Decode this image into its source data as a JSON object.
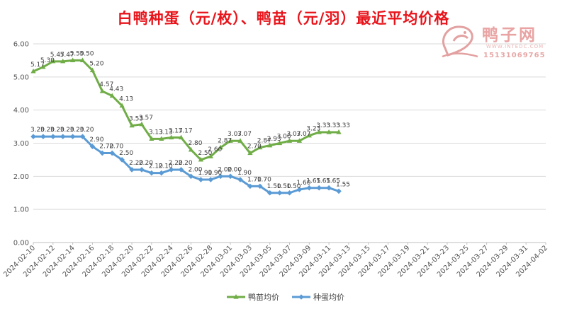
{
  "chart_data": {
    "type": "line",
    "title": "白鸭种蛋（元/枚）、鸭苗（元/羽）最近平均价格",
    "ylim": [
      0,
      6
    ],
    "yticks": [
      "0.00",
      "1.00",
      "2.00",
      "3.00",
      "4.00",
      "5.00",
      "6.00"
    ],
    "xtick_labels": [
      "2024-02-10",
      "2024-02-12",
      "2024-02-14",
      "2024-02-16",
      "2024-02-18",
      "2024-02-20",
      "2024-02-22",
      "2024-02-24",
      "2024-02-26",
      "2024-02-28",
      "2024-03-01",
      "2024-03-03",
      "2024-03-05",
      "2024-03-07",
      "2024-03-09",
      "2024-03-11",
      "2024-03-13",
      "2024-03-15",
      "2024-03-17",
      "2024-03-19",
      "2024-03-21",
      "2024-03-23",
      "2024-03-25",
      "2024-03-27",
      "2024-03-29",
      "2024-03-31",
      "2024-04-02"
    ],
    "legend_position": "bottom",
    "grid": "horizontal",
    "series": [
      {
        "name": "鸭苗均价",
        "color": "#70ad47",
        "marker": "triangle",
        "values": [
          5.17,
          5.3,
          5.47,
          5.47,
          5.5,
          5.5,
          5.2,
          4.57,
          4.43,
          4.13,
          3.53,
          3.57,
          3.13,
          3.13,
          3.17,
          3.17,
          2.8,
          2.5,
          2.6,
          2.87,
          3.07,
          3.07,
          2.7,
          2.87,
          2.93,
          3.0,
          3.07,
          3.07,
          3.23,
          3.33,
          3.33,
          3.33
        ],
        "labels": [
          "5.17",
          "5.30",
          "5.47",
          "5.47",
          "5.50",
          "5.50",
          "5.20",
          "4.57",
          "4.43",
          "4.13",
          "3.53",
          "3.57",
          "3.13",
          "3.13",
          "3.17",
          "3.17",
          "2.80",
          "2.50",
          "2.60",
          "2.87",
          "3.07",
          "3.07",
          "2.70",
          "2.87",
          "2.93",
          "3.00",
          "3.07",
          "3.07",
          "3.23",
          "3.33",
          "3.33",
          "3.33"
        ]
      },
      {
        "name": "种蛋均价",
        "color": "#5b9bd5",
        "marker": "diamond",
        "values": [
          3.2,
          3.2,
          3.2,
          3.2,
          3.2,
          3.2,
          2.9,
          2.7,
          2.7,
          2.5,
          2.2,
          2.2,
          2.1,
          2.1,
          2.2,
          2.2,
          2.0,
          1.9,
          1.9,
          2.0,
          2.0,
          1.9,
          1.7,
          1.7,
          1.5,
          1.5,
          1.5,
          1.6,
          1.65,
          1.65,
          1.65,
          1.55
        ],
        "labels": [
          "3.20",
          "3.20",
          "3.20",
          "3.20",
          "3.20",
          "3.20",
          "2.90",
          "2.70",
          "2.70",
          "2.50",
          "2.20",
          "2.20",
          "2.10",
          "2.10",
          "2.20",
          "2.20",
          "2.00",
          "1.90",
          "1.90",
          "2.00",
          "2.00",
          "1.90",
          "1.70",
          "1.70",
          "1.50",
          "1.50",
          "1.50",
          "1.60",
          "1.65",
          "1.65",
          "1.65",
          "1.55"
        ]
      }
    ]
  },
  "watermark": {
    "name": "鸭子网",
    "site": "WWW.INTEDC.COM",
    "phone": "15131069765"
  }
}
